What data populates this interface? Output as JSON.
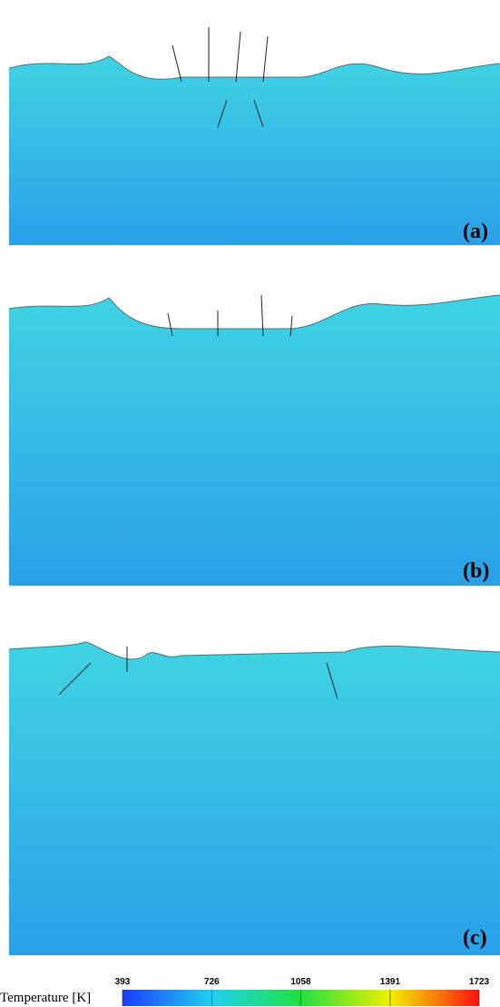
{
  "panels": [
    {
      "label": "(a)"
    },
    {
      "label": "(b)"
    },
    {
      "label": "(c)"
    }
  ],
  "colorbar": {
    "title": "Temperature [K]",
    "lim": [
      393,
      1723
    ],
    "ticks": [
      393,
      726,
      1058,
      1391,
      1723
    ]
  }
}
